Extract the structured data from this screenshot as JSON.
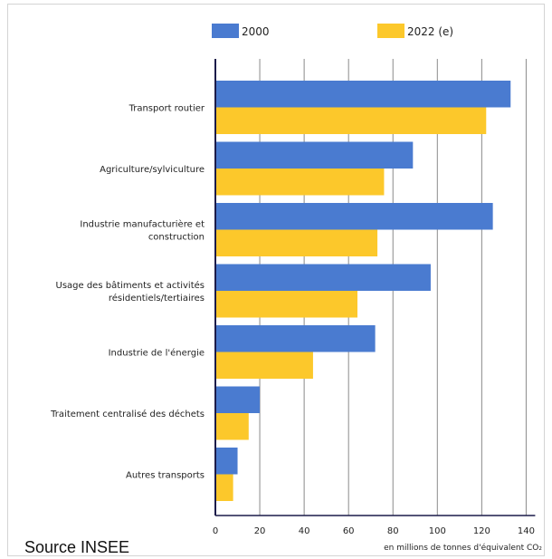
{
  "chart_data": {
    "type": "bar",
    "orientation": "horizontal",
    "categories": [
      [
        "Transport routier"
      ],
      [
        "Agriculture/sylviculture"
      ],
      [
        "Industrie manufacturière et",
        "construction"
      ],
      [
        "Usage des bâtiments et activités",
        "résidentiels/tertiaires"
      ],
      [
        "Industrie de l'énergie"
      ],
      [
        "Traitement centralisé des déchets"
      ],
      [
        "Autres transports"
      ]
    ],
    "series": [
      {
        "name": "2000",
        "color": "#4a7bd0",
        "values": [
          133,
          89,
          125,
          97,
          72,
          20,
          10
        ]
      },
      {
        "name": "2022 (e)",
        "color": "#fcc82b",
        "values": [
          122,
          76,
          73,
          64,
          44,
          15,
          8
        ]
      }
    ],
    "xticks": [
      "0",
      "20",
      "40",
      "60",
      "80",
      "100",
      "120",
      "140"
    ],
    "xlim": [
      0,
      140
    ],
    "xlabel": "en millions de tonnes d'équivalent CO₂",
    "grid": "vertical",
    "legend": "top"
  },
  "source": "Source INSEE"
}
